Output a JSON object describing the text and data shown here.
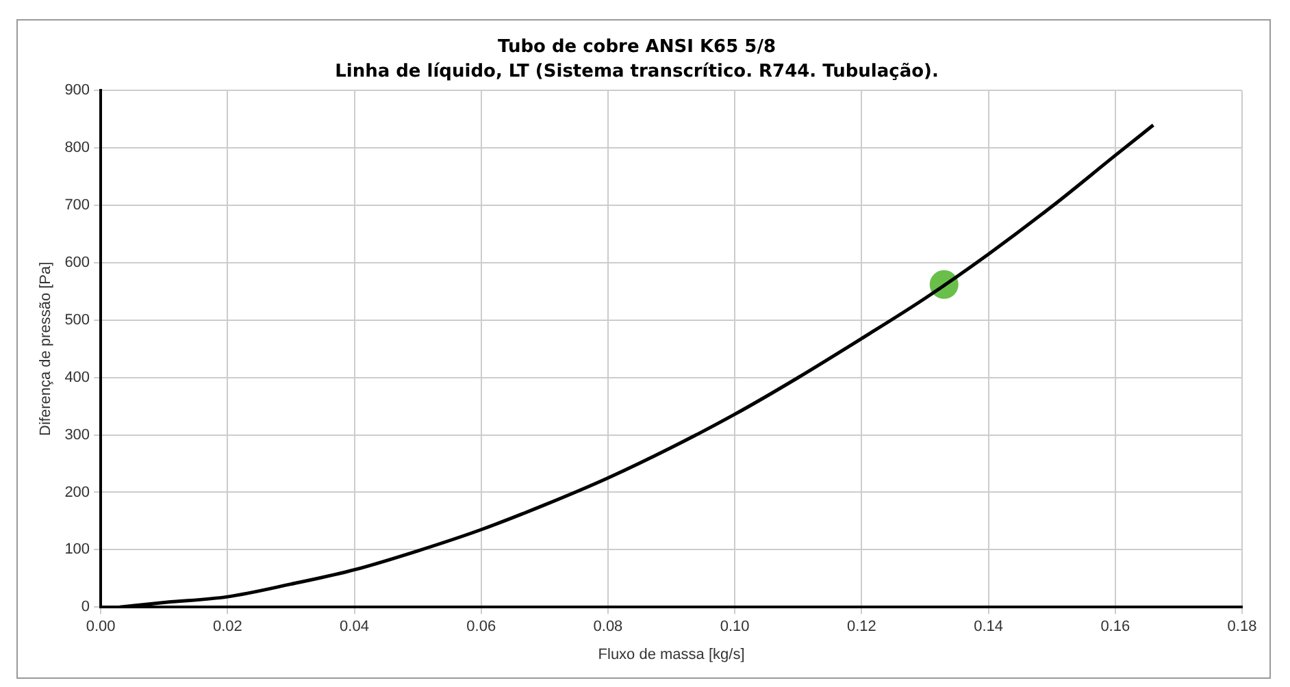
{
  "chart_data": {
    "type": "line",
    "title": "Tubo de cobre ANSI K65 5/8",
    "subtitle": "Linha de líquido, LT (Sistema transcrítico. R744. Tubulação).",
    "xlabel": "Fluxo de massa [kg/s]",
    "ylabel": "Diferença de pressão [Pa]",
    "series": [
      {
        "color": "#000000",
        "marker": "none",
        "x": [
          0.003,
          0.01,
          0.02,
          0.03,
          0.04,
          0.05,
          0.06,
          0.07,
          0.08,
          0.09,
          0.1,
          0.11,
          0.12,
          0.13,
          0.14,
          0.15,
          0.16,
          0.166
        ],
        "values": [
          0,
          8,
          18,
          40,
          65,
          98,
          135,
          178,
          225,
          278,
          336,
          400,
          468,
          538,
          615,
          698,
          787,
          840
        ]
      },
      {
        "type": "scatter",
        "color": "#6abf4b",
        "marker": "circle",
        "x": [
          0.133
        ],
        "values": [
          562
        ]
      }
    ],
    "xlim": [
      0,
      0.18
    ],
    "xticks": [
      {
        "value": 0,
        "label": "0.00"
      },
      {
        "value": 0.02,
        "label": "0.02"
      },
      {
        "value": 0.04,
        "label": "0.04"
      },
      {
        "value": 0.06,
        "label": "0.06"
      },
      {
        "value": 0.08,
        "label": "0.08"
      },
      {
        "value": 0.1,
        "label": "0.10"
      },
      {
        "value": 0.12,
        "label": "0.12"
      },
      {
        "value": 0.14,
        "label": "0.14"
      },
      {
        "value": 0.16,
        "label": "0.16"
      },
      {
        "value": 0.18,
        "label": "0.18"
      }
    ],
    "ylim": [
      0,
      900
    ],
    "yticks": [
      0,
      100,
      200,
      300,
      400,
      500,
      600,
      700,
      800,
      900
    ],
    "grid": true,
    "legend": false
  }
}
